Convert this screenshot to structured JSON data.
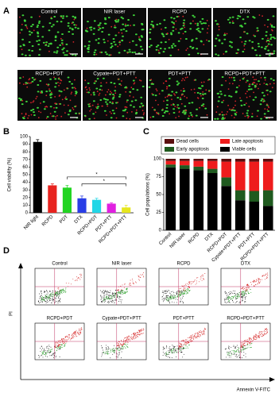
{
  "panel_a": {
    "label": "A",
    "images": [
      "Control",
      "NIR laser",
      "RCPD",
      "DTX",
      "RCPD+PDT",
      "Cypate+PDT+PTT",
      "PDT+PTT",
      "RCPD+PDT+PTT"
    ]
  },
  "chart_data": [
    {
      "type": "bar",
      "label": "B",
      "y_label": "Cell viability (%)",
      "categories": [
        "NIR light",
        "RCPD",
        "PDT",
        "DTX",
        "RCPD+PDT",
        "PDT+PTT",
        "RCPD+PDT+PTT"
      ],
      "values": [
        93,
        36,
        33,
        19,
        17,
        12,
        7
      ],
      "errors": [
        3,
        2,
        3,
        3,
        2,
        1,
        3
      ],
      "colors": [
        "#000000",
        "#e8231f",
        "#22d422",
        "#2a3ee6",
        "#22d6e6",
        "#e020e0",
        "#e6e61e"
      ],
      "ylim": [
        0,
        100
      ],
      "yticks": [
        0,
        10,
        20,
        30,
        40,
        50,
        60,
        70,
        80,
        90,
        100
      ],
      "brackets": [
        {
          "label": "*",
          "y": 47,
          "from": "PDT",
          "to": "RCPD+PDT+PTT"
        },
        {
          "label": "*",
          "y": 38,
          "from": "DTX",
          "to": "RCPD+PDT+PTT"
        }
      ]
    },
    {
      "type": "stacked_bar",
      "label": "C",
      "y_label": "Cell populations (%)",
      "categories": [
        "Control",
        "NIR laser",
        "RCPD",
        "DTX",
        "RCPD+PDT",
        "Cypate+PDT+PTT",
        "PDT+PTT",
        "RCPD+PDT+PTT"
      ],
      "series": [
        {
          "name": "Viable cells",
          "color": "#000000",
          "values": [
            88,
            86,
            84,
            80,
            62,
            42,
            40,
            34
          ]
        },
        {
          "name": "Early apoptosis",
          "color": "#1f5a1f",
          "values": [
            4,
            5,
            5,
            6,
            12,
            14,
            15,
            22
          ]
        },
        {
          "name": "Late apoptosis",
          "color": "#ee1c1c",
          "values": [
            5,
            6,
            8,
            11,
            22,
            40,
            41,
            40
          ]
        },
        {
          "name": "Dead cells",
          "color": "#5a0f0f",
          "values": [
            3,
            3,
            3,
            3,
            4,
            4,
            4,
            4
          ]
        }
      ],
      "ylim": [
        0,
        100
      ],
      "yticks": [
        0,
        25,
        50,
        75,
        100
      ]
    }
  ],
  "panel_d": {
    "label": "D",
    "y_label": "PI",
    "x_label": "Annexin V-FITC",
    "plots": [
      "Control",
      "NIR laser",
      "RCPD",
      "DTX",
      "RCPD+PDT",
      "Cypate+PDT+PTT",
      "PDT+PTT",
      "RCPD+PDT+PTT"
    ]
  }
}
